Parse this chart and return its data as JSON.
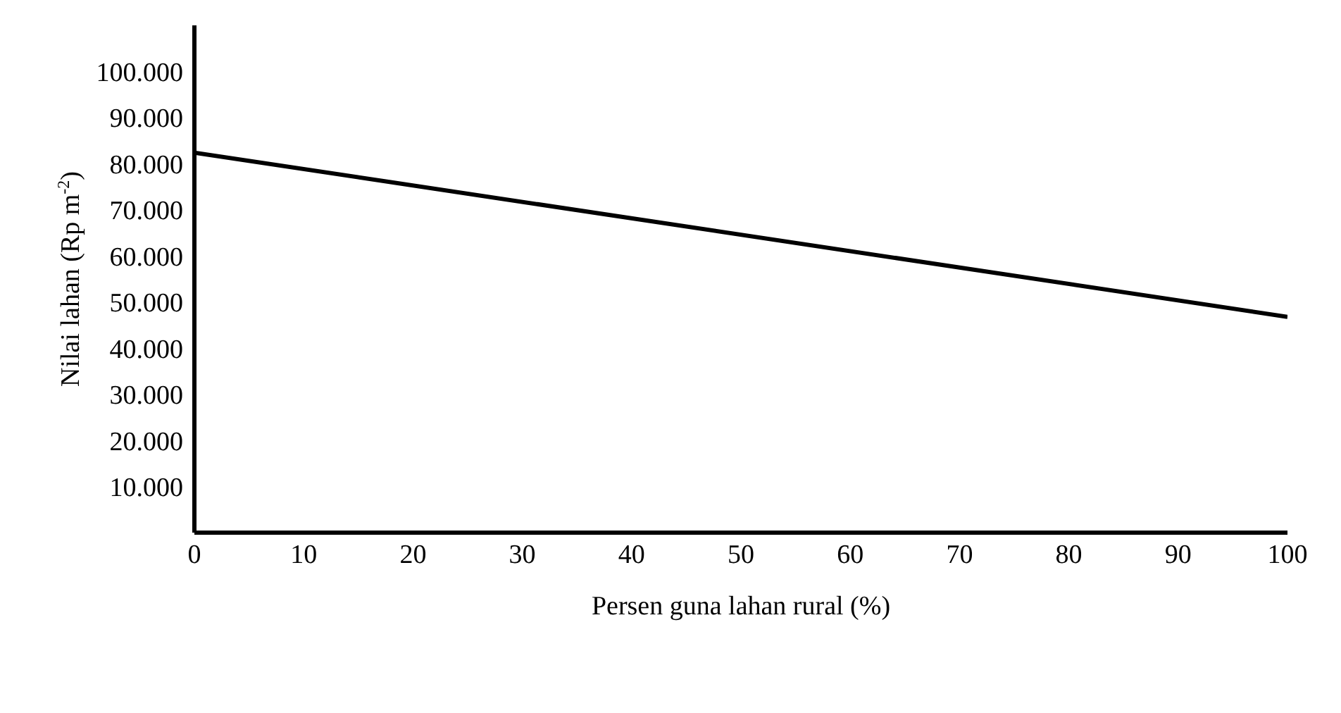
{
  "chart_data": {
    "type": "line",
    "xlabel": "Persen guna lahan rural (%)",
    "ylabel": "Nilai lahan (Rp m$^{-2}$)",
    "x": [
      0,
      100
    ],
    "values": [
      82400,
      46800
    ],
    "color": "#000000",
    "marker": "none",
    "line_style": "solid",
    "grid": false,
    "xlim": [
      0,
      100
    ],
    "xticks": [
      0,
      10,
      20,
      30,
      40,
      50,
      60,
      70,
      80,
      90,
      100
    ],
    "ylim": [
      0,
      110000
    ],
    "yticks": [
      {
        "value": 10000,
        "label": "10.000"
      },
      {
        "value": 20000,
        "label": "20.000"
      },
      {
        "value": 30000,
        "label": "30.000"
      },
      {
        "value": 40000,
        "label": "40.000"
      },
      {
        "value": 50000,
        "label": "50.000"
      },
      {
        "value": 60000,
        "label": "60.000"
      },
      {
        "value": 70000,
        "label": "70.000"
      },
      {
        "value": 80000,
        "label": "80.000"
      },
      {
        "value": 90000,
        "label": "90.000"
      },
      {
        "value": 100000,
        "label": "100.000"
      }
    ]
  }
}
